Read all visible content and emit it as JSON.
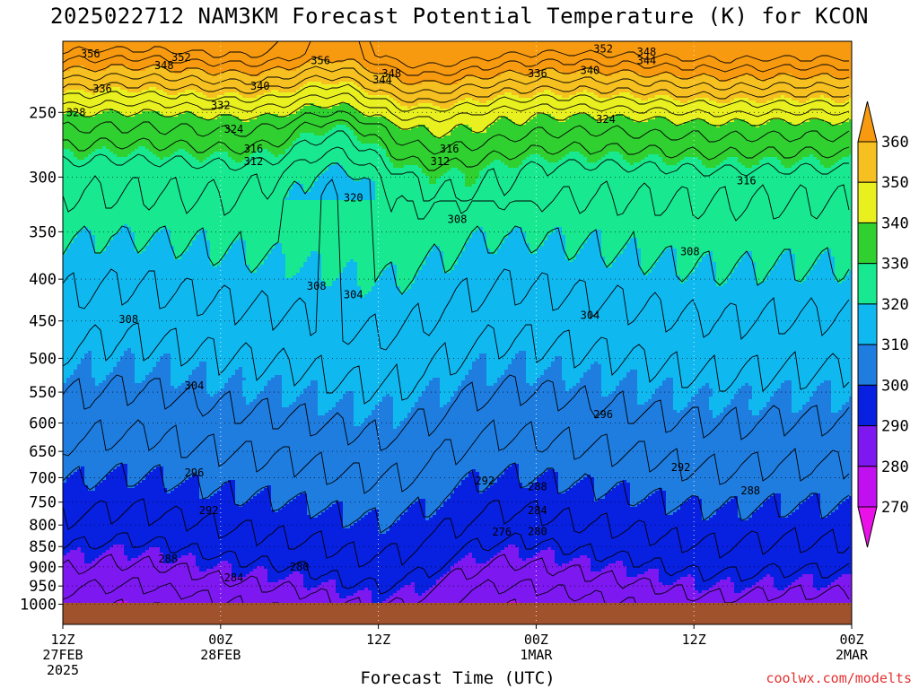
{
  "title": "2025022712 NAM3KM Forecast Potential Temperature (K) for KCON",
  "xlabel": "Forecast Time (UTC)",
  "credit": "coolwx.com/modelts",
  "chart_data": {
    "type": "heatmap",
    "title": "2025022712 NAM3KM Forecast Potential Temperature (K) for KCON",
    "xlabel": "Forecast Time (UTC)",
    "ylabel": "",
    "y_ticks": [
      250,
      300,
      350,
      400,
      450,
      500,
      550,
      600,
      650,
      700,
      750,
      800,
      850,
      900,
      950,
      1000
    ],
    "x_ticks": [
      {
        "hours": 0,
        "lines": [
          "12Z",
          "27FEB",
          "2025"
        ]
      },
      {
        "hours": 12,
        "lines": [
          "00Z",
          "28FEB"
        ]
      },
      {
        "hours": 24,
        "lines": [
          "12Z"
        ]
      },
      {
        "hours": 36,
        "lines": [
          "00Z",
          "1MAR"
        ]
      },
      {
        "hours": 48,
        "lines": [
          "12Z"
        ]
      },
      {
        "hours": 60,
        "lines": [
          "00Z",
          "2MAR"
        ]
      }
    ],
    "xlim": [
      0,
      60
    ],
    "ylim": [
      1000,
      200
    ],
    "colorbar": {
      "labels": [
        360,
        350,
        340,
        330,
        320,
        310,
        300,
        290,
        280,
        270
      ],
      "bands": [
        {
          "min": 350,
          "max": 360,
          "color": "#f79a10"
        },
        {
          "min": 340,
          "max": 350,
          "color": "#f5c020"
        },
        {
          "min": 330,
          "max": 340,
          "color": "#e9f020"
        },
        {
          "min": 320,
          "max": 330,
          "color": "#30d030"
        },
        {
          "min": 310,
          "max": 320,
          "color": "#18e890"
        },
        {
          "min": 300,
          "max": 310,
          "color": "#10b8f0"
        },
        {
          "min": 290,
          "max": 300,
          "color": "#1f7de0"
        },
        {
          "min": 280,
          "max": 290,
          "color": "#0820e0"
        },
        {
          "min": 270,
          "max": 280,
          "color": "#7e18f0"
        },
        {
          "min": 260,
          "max": 270,
          "color": "#c010f0"
        },
        {
          "min": 250,
          "max": 260,
          "color": "#ea10e8"
        }
      ]
    },
    "contour_labels": [
      {
        "value": "356",
        "hours": 2.1,
        "p": 212
      },
      {
        "value": "352",
        "hours": 9.0,
        "p": 214
      },
      {
        "value": "348",
        "hours": 7.7,
        "p": 219
      },
      {
        "value": "356",
        "hours": 19.6,
        "p": 216
      },
      {
        "value": "352",
        "hours": 41.1,
        "p": 209
      },
      {
        "value": "348",
        "hours": 44.4,
        "p": 211
      },
      {
        "value": "344",
        "hours": 44.4,
        "p": 216
      },
      {
        "value": "348",
        "hours": 25.0,
        "p": 224
      },
      {
        "value": "344",
        "hours": 24.3,
        "p": 228
      },
      {
        "value": "340",
        "hours": 40.1,
        "p": 222
      },
      {
        "value": "336",
        "hours": 36.1,
        "p": 224
      },
      {
        "value": "336",
        "hours": 3.0,
        "p": 234
      },
      {
        "value": "340",
        "hours": 15.0,
        "p": 232
      },
      {
        "value": "332",
        "hours": 12.0,
        "p": 245
      },
      {
        "value": "328",
        "hours": 1.0,
        "p": 250
      },
      {
        "value": "324",
        "hours": 13.0,
        "p": 262
      },
      {
        "value": "324",
        "hours": 41.3,
        "p": 255
      },
      {
        "value": "316",
        "hours": 14.5,
        "p": 277
      },
      {
        "value": "312",
        "hours": 14.5,
        "p": 287
      },
      {
        "value": "316",
        "hours": 29.4,
        "p": 277
      },
      {
        "value": "312",
        "hours": 28.7,
        "p": 287
      },
      {
        "value": "316",
        "hours": 52.0,
        "p": 303
      },
      {
        "value": "320",
        "hours": 22.1,
        "p": 318
      },
      {
        "value": "308",
        "hours": 30.0,
        "p": 338
      },
      {
        "value": "308",
        "hours": 47.7,
        "p": 370
      },
      {
        "value": "308",
        "hours": 19.3,
        "p": 408
      },
      {
        "value": "304",
        "hours": 22.1,
        "p": 418
      },
      {
        "value": "308",
        "hours": 5.0,
        "p": 448
      },
      {
        "value": "304",
        "hours": 40.1,
        "p": 443
      },
      {
        "value": "304",
        "hours": 10.0,
        "p": 540
      },
      {
        "value": "296",
        "hours": 41.1,
        "p": 586
      },
      {
        "value": "296",
        "hours": 10.0,
        "p": 690
      },
      {
        "value": "292",
        "hours": 32.1,
        "p": 706
      },
      {
        "value": "292",
        "hours": 47.0,
        "p": 680
      },
      {
        "value": "288",
        "hours": 36.1,
        "p": 718
      },
      {
        "value": "288",
        "hours": 52.3,
        "p": 726
      },
      {
        "value": "292",
        "hours": 11.1,
        "p": 768
      },
      {
        "value": "284",
        "hours": 36.1,
        "p": 768
      },
      {
        "value": "276",
        "hours": 33.4,
        "p": 816
      },
      {
        "value": "280",
        "hours": 36.1,
        "p": 815
      },
      {
        "value": "288",
        "hours": 8.0,
        "p": 880
      },
      {
        "value": "280",
        "hours": 18.0,
        "p": 900
      },
      {
        "value": "284",
        "hours": 13.0,
        "p": 928
      }
    ]
  }
}
